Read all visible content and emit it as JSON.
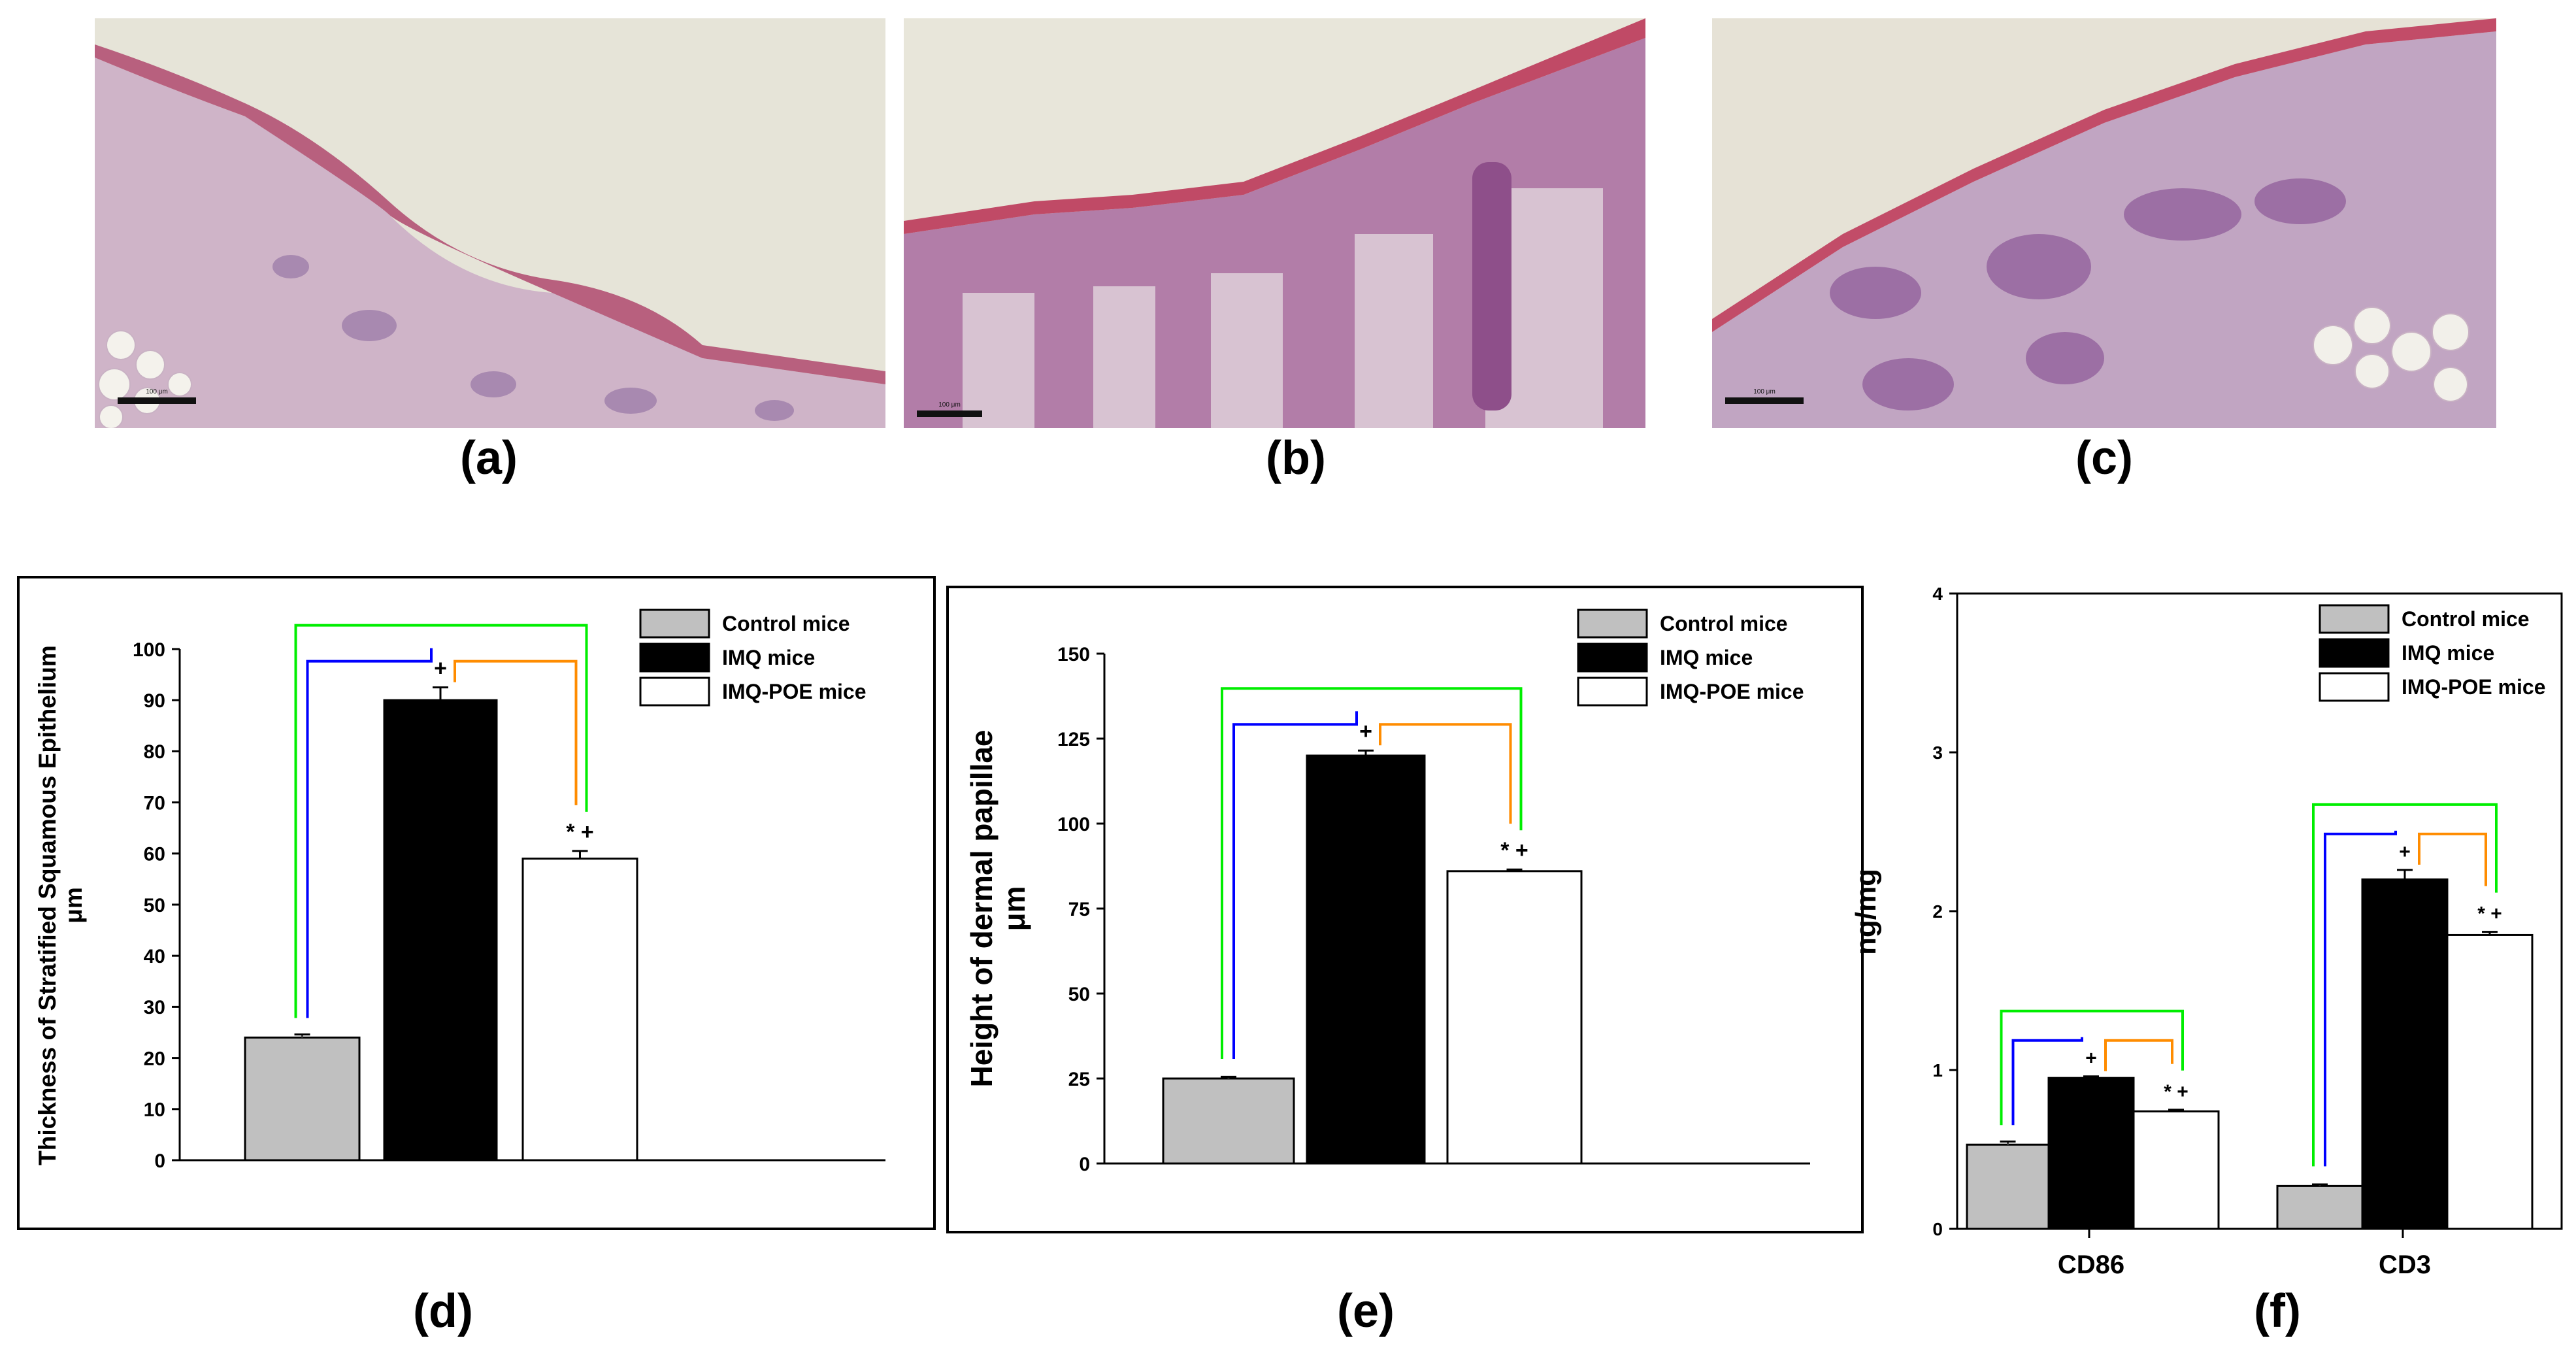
{
  "panel_labels": [
    "(a)",
    "(b)",
    "(c)",
    "(d)",
    "(e)",
    "(f)"
  ],
  "micrographs": [
    {
      "scale_bar": "100 μm"
    },
    {
      "scale_bar": "100 μm"
    },
    {
      "scale_bar": "100 μm"
    }
  ],
  "colors": {
    "control": "#c0c0c0",
    "imq": "#000000",
    "imq_poe": "#ffffff",
    "bracket_control_vs_imq": "#0000ff",
    "bracket_imq_vs_poe": "#ff8c00",
    "bracket_control_vs_poe": "#00ee00",
    "tissue": "#c9a9c9",
    "keratin": "#c8506e",
    "background": "#e8e6dc"
  },
  "chart_data": [
    {
      "type": "bar",
      "panel": "(d)",
      "categories": [
        ""
      ],
      "series": [
        {
          "name": "Control mice",
          "values": [
            24
          ],
          "errors": [
            0.6
          ]
        },
        {
          "name": "IMQ mice",
          "values": [
            90
          ],
          "errors": [
            2.5
          ]
        },
        {
          "name": "IMQ-POE mice",
          "values": [
            59
          ],
          "errors": [
            1.5
          ]
        }
      ],
      "annotations": [
        "",
        "+",
        "* +"
      ],
      "ylabel": "Thickness of Stratified Squamous Epithelium",
      "yunit": "μm",
      "ylim": [
        0,
        100
      ],
      "yticks": [
        0,
        10,
        20,
        30,
        40,
        50,
        60,
        70,
        80,
        90,
        100
      ],
      "legend": "top-right",
      "grid": false
    },
    {
      "type": "bar",
      "panel": "(e)",
      "categories": [
        ""
      ],
      "series": [
        {
          "name": "Control mice",
          "values": [
            25
          ],
          "errors": [
            0.5
          ]
        },
        {
          "name": "IMQ mice",
          "values": [
            120
          ],
          "errors": [
            1.5
          ]
        },
        {
          "name": "IMQ-POE mice",
          "values": [
            86
          ],
          "errors": [
            0.5
          ]
        }
      ],
      "annotations": [
        "",
        "+",
        "* +"
      ],
      "ylabel": "Height of dermal papillae",
      "yunit": "μm",
      "ylim": [
        0,
        150
      ],
      "yticks": [
        0,
        25,
        50,
        75,
        100,
        125,
        150
      ],
      "legend": "top-right",
      "grid": false
    },
    {
      "type": "bar",
      "panel": "(f)",
      "categories": [
        "CD86",
        "CD3"
      ],
      "series": [
        {
          "name": "Control mice",
          "values": [
            0.53,
            0.27
          ],
          "errors": [
            0.02,
            0.01
          ]
        },
        {
          "name": "IMQ mice",
          "values": [
            0.95,
            2.2
          ],
          "errors": [
            0.01,
            0.06
          ]
        },
        {
          "name": "IMQ-POE mice",
          "values": [
            0.74,
            1.85
          ],
          "errors": [
            0.01,
            0.02
          ]
        }
      ],
      "annotations": [
        "",
        "+",
        "* +"
      ],
      "ylabel": "ng/mg",
      "ylim": [
        0,
        4
      ],
      "yticks": [
        0,
        1,
        2,
        3,
        4
      ],
      "legend": "top-right",
      "grid": false
    }
  ]
}
